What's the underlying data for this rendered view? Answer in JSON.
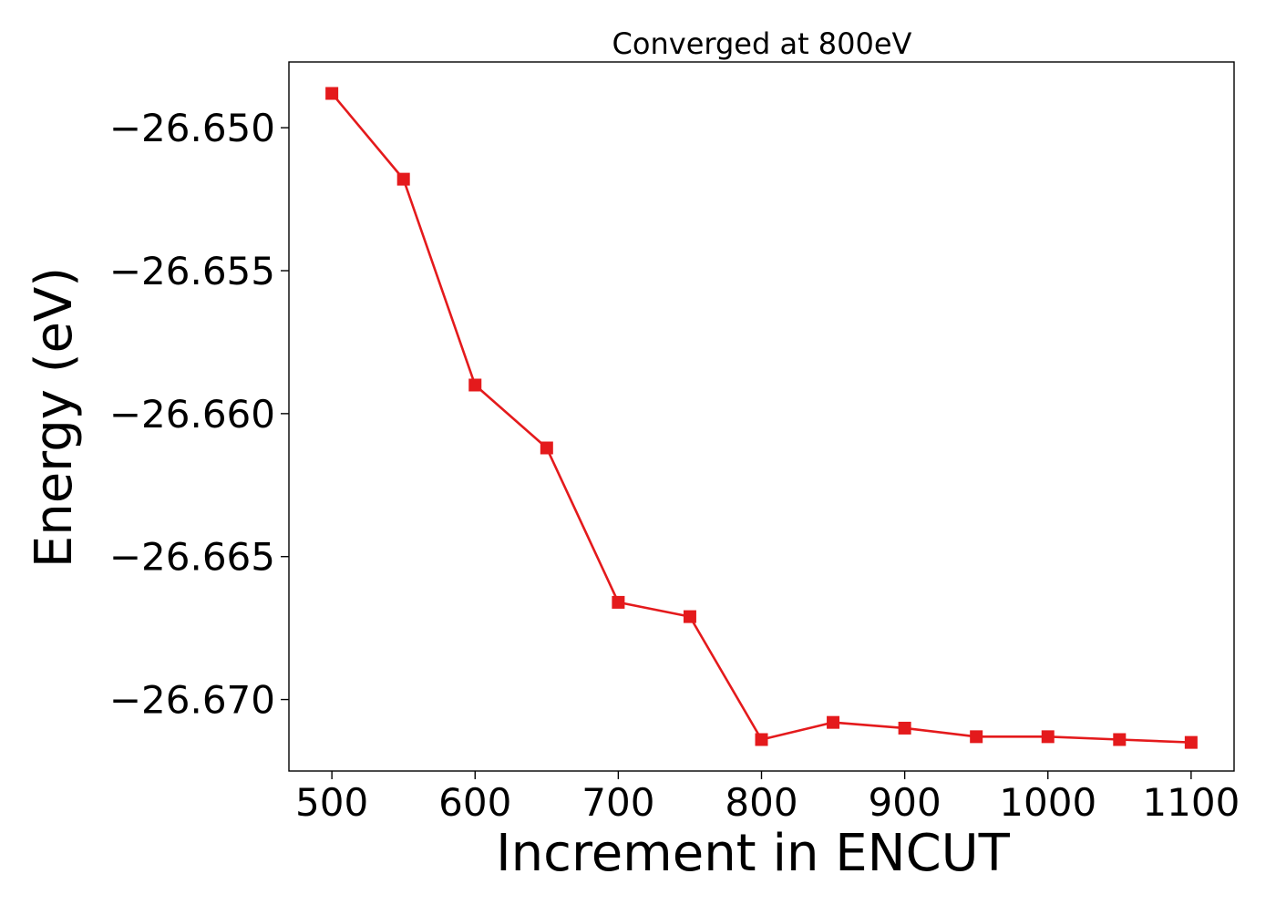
{
  "chart_data": {
    "type": "line",
    "title": "Converged at 800eV",
    "xlabel": "Increment in ENCUT",
    "ylabel": "Energy (eV)",
    "x": [
      500,
      550,
      600,
      650,
      700,
      750,
      800,
      850,
      900,
      950,
      1000,
      1050,
      1100
    ],
    "series": [
      {
        "color": "#e41a1c",
        "marker": "square",
        "values": [
          -26.6488,
          -26.6518,
          -26.659,
          -26.6612,
          -26.6666,
          -26.6671,
          -26.6714,
          -26.6708,
          -26.671,
          -26.6713,
          -26.6713,
          -26.6714,
          -26.6715
        ]
      }
    ],
    "xlim": [
      470,
      1130
    ],
    "ylim": [
      -26.6725,
      -26.6477
    ],
    "xticks": [
      500,
      600,
      700,
      800,
      900,
      1000,
      1100
    ],
    "xtick_labels": [
      "500",
      "600",
      "700",
      "800",
      "900",
      "1000",
      "1100"
    ],
    "yticks": [
      -26.65,
      -26.655,
      -26.66,
      -26.665,
      -26.67
    ],
    "ytick_labels": [
      "−26.650",
      "−26.655",
      "−26.660",
      "−26.665",
      "−26.670"
    ],
    "grid": false,
    "legend": "none"
  }
}
